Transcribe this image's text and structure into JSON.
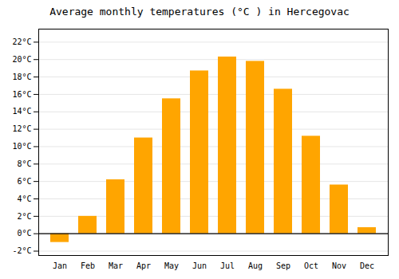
{
  "chart_data": {
    "type": "bar",
    "title": "Average monthly temperatures (°C ) in Hercegovac",
    "categories": [
      "Jan",
      "Feb",
      "Mar",
      "Apr",
      "May",
      "Jun",
      "Jul",
      "Aug",
      "Sep",
      "Oct",
      "Nov",
      "Dec"
    ],
    "values": [
      -1.0,
      2.0,
      6.2,
      11.0,
      15.5,
      18.7,
      20.3,
      19.8,
      16.6,
      11.2,
      5.6,
      0.7
    ],
    "color": "#FFA500",
    "ylim": [
      -2.5,
      23.5
    ],
    "yticks": [
      {
        "value": -2,
        "label": "-2°C"
      },
      {
        "value": 0,
        "label": "0°C"
      },
      {
        "value": 2,
        "label": "2°C"
      },
      {
        "value": 4,
        "label": "4°C"
      },
      {
        "value": 6,
        "label": "6°C"
      },
      {
        "value": 8,
        "label": "8°C"
      },
      {
        "value": 10,
        "label": "10°C"
      },
      {
        "value": 12,
        "label": "12°C"
      },
      {
        "value": 14,
        "label": "14°C"
      },
      {
        "value": 16,
        "label": "16°C"
      },
      {
        "value": 18,
        "label": "18°C"
      },
      {
        "value": 20,
        "label": "20°C"
      },
      {
        "value": 22,
        "label": "22°C"
      }
    ],
    "grid": true
  }
}
